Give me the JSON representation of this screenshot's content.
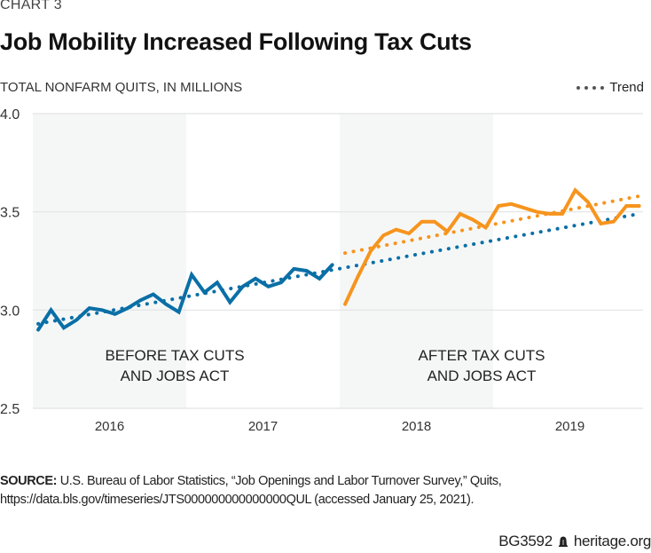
{
  "header": {
    "kicker": "CHART 3",
    "title": "Job Mobility Increased Following Tax Cuts",
    "subtitle": "TOTAL NONFARM QUITS, IN MILLIONS"
  },
  "legend": {
    "label": "Trend"
  },
  "colors": {
    "before": "#0a6fa6",
    "after": "#f7941d",
    "shade": "#f5f7f7",
    "grid": "#e3e3e3",
    "trend_legend": "#555555"
  },
  "chart_data": {
    "type": "line",
    "title": "Job Mobility Increased Following Tax Cuts",
    "ylabel": "TOTAL NONFARM QUITS, IN MILLIONS",
    "xlabel": "",
    "ylim": [
      2.5,
      4.0
    ],
    "yticks": [
      "2.5",
      "3.0",
      "3.5",
      "4.0"
    ],
    "ytick_values": [
      2.5,
      3.0,
      3.5,
      4.0
    ],
    "xticks": [
      "2016",
      "2017",
      "2018",
      "2019"
    ],
    "grid": true,
    "legend": "top-right",
    "shaded_years": [
      "2016",
      "2018"
    ],
    "annotations": [
      {
        "lines": [
          "BEFORE TAX CUTS",
          "AND JOBS ACT"
        ],
        "period": "2016-2017"
      },
      {
        "lines": [
          "AFTER TAX CUTS",
          "AND JOBS ACT"
        ],
        "period": "2018-2019"
      }
    ],
    "series": [
      {
        "name": "Before Tax Cuts and Jobs Act",
        "start": "2016-01",
        "frequency": "monthly",
        "values": [
          2.9,
          3.0,
          2.91,
          2.95,
          3.01,
          3.0,
          2.98,
          3.01,
          3.05,
          3.08,
          3.03,
          2.99,
          3.18,
          3.09,
          3.14,
          3.04,
          3.12,
          3.16,
          3.12,
          3.14,
          3.21,
          3.2,
          3.16,
          3.23
        ]
      },
      {
        "name": "After Tax Cuts and Jobs Act",
        "start": "2018-01",
        "frequency": "monthly",
        "values": [
          3.03,
          3.17,
          3.3,
          3.38,
          3.41,
          3.39,
          3.45,
          3.45,
          3.4,
          3.49,
          3.46,
          3.42,
          3.53,
          3.54,
          3.52,
          3.5,
          3.49,
          3.49,
          3.61,
          3.55,
          3.44,
          3.45,
          3.53,
          3.53
        ]
      }
    ],
    "trends": [
      {
        "name": "Trend (before)",
        "from": {
          "month_index": 0,
          "value": 2.93
        },
        "to": {
          "month_index": 47,
          "value": 3.49
        }
      },
      {
        "name": "Trend (after)",
        "from": {
          "month_index": 24,
          "value": 3.29
        },
        "to": {
          "month_index": 47,
          "value": 3.58
        }
      }
    ]
  },
  "source": {
    "label": "SOURCE:",
    "text": "U.S. Bureau of Labor Statistics, “Job Openings and Labor Turnover Survey,” Quits, https://data.bls.gov/timeseries/JTS000000000000000QUL (accessed January 25, 2021)."
  },
  "footer": {
    "code": "BG3592",
    "site": "heritage.org"
  }
}
